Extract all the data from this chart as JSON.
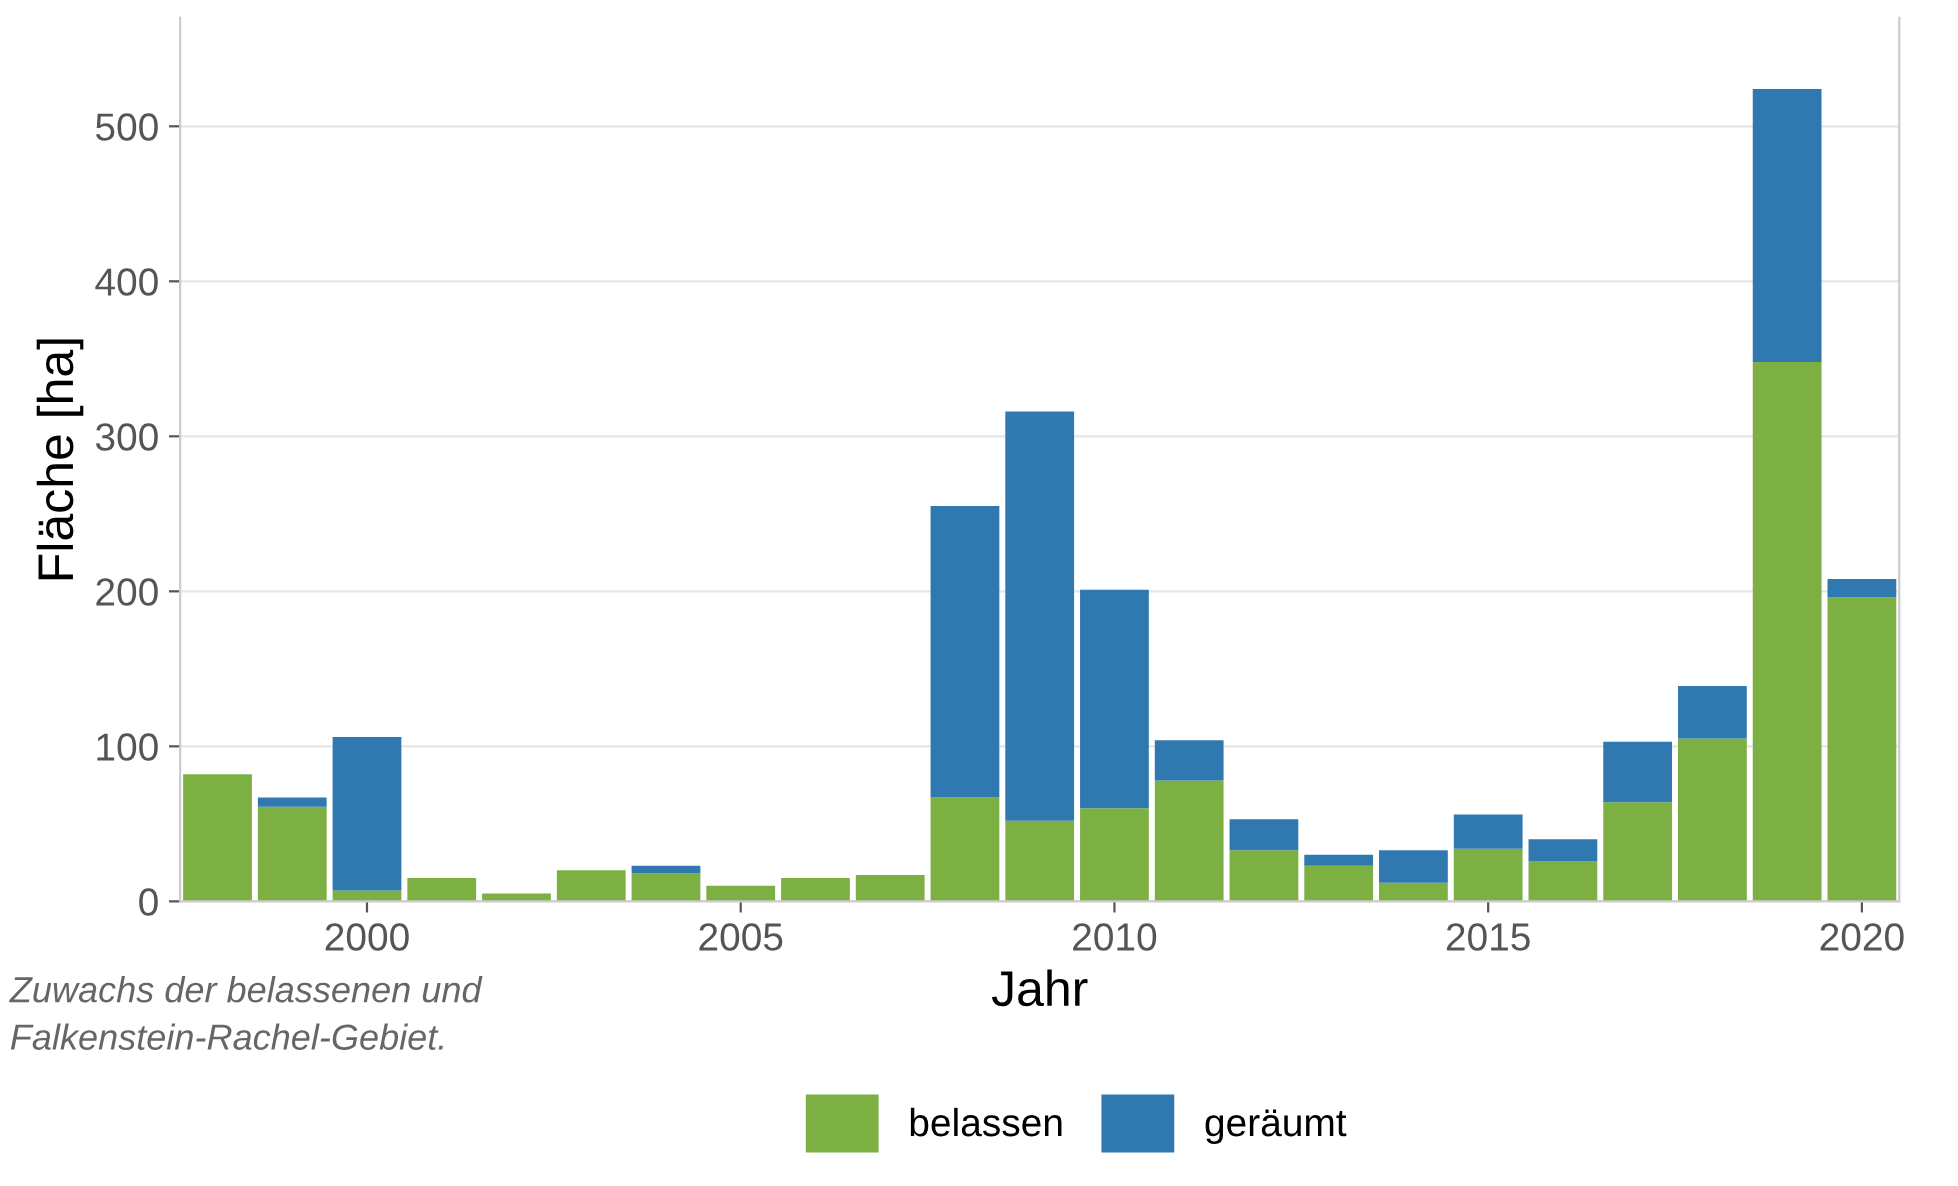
{
  "chart_data": {
    "type": "bar",
    "stacked": true,
    "xlabel": "Jahr",
    "ylabel": "Fläche [ha]",
    "x": [
      1998,
      1999,
      2000,
      2001,
      2002,
      2003,
      2004,
      2005,
      2006,
      2007,
      2008,
      2009,
      2010,
      2011,
      2012,
      2013,
      2014,
      2015,
      2016,
      2017,
      2018,
      2019,
      2020
    ],
    "series": [
      {
        "name": "belassen",
        "color": "#7cb043",
        "values": [
          82,
          61,
          7,
          15,
          5,
          20,
          18,
          10,
          15,
          17,
          67,
          52,
          60,
          78,
          33,
          23,
          12,
          34,
          26,
          64,
          105,
          348,
          196
        ]
      },
      {
        "name": "geräumt",
        "color": "#2f78b0",
        "values": [
          0,
          6,
          99,
          0,
          0,
          0,
          5,
          0,
          0,
          0,
          188,
          264,
          141,
          26,
          20,
          7,
          21,
          22,
          14,
          39,
          34,
          176,
          12
        ]
      }
    ],
    "xlim": [
      1997.5,
      2020.5
    ],
    "xticks": [
      2000,
      2005,
      2010,
      2015,
      2020
    ],
    "ylim": [
      0,
      570
    ],
    "yticks": [
      0,
      100,
      200,
      300,
      400,
      500
    ],
    "grid": "y",
    "legend": "bottom",
    "annotations": [
      "Zuwachs der belassenen und",
      "Falkenstein-Rachel-Gebiet."
    ]
  }
}
